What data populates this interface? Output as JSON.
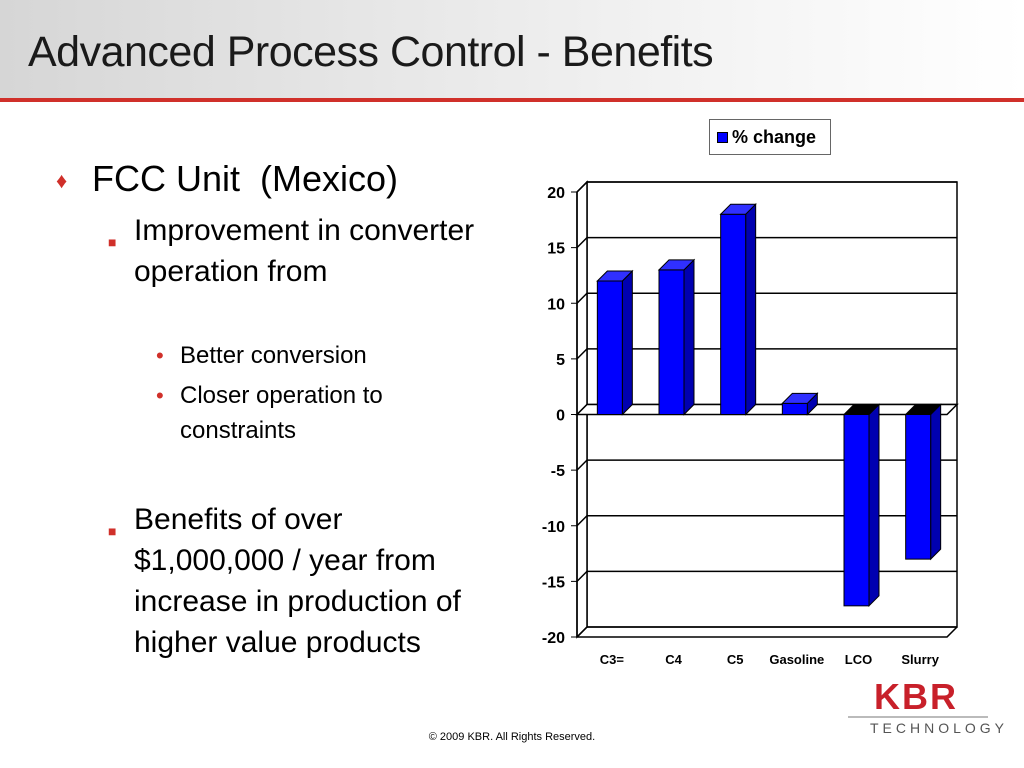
{
  "slide": {
    "title": "Advanced Process Control - Benefits",
    "footer": "© 2009 KBR. All Rights Reserved."
  },
  "bullets": {
    "level1_marker": "♦",
    "level2_marker": "■",
    "level3_marker": "•",
    "fcc": "FCC Unit  (Mexico)",
    "improvement": "Improvement in converter operation from",
    "better_conversion": "Better conversion",
    "closer_operation": "Closer operation to constraints",
    "benefits": "Benefits of over $1,000,000 / year from increase in production of higher value products"
  },
  "logo": {
    "name": "KBR",
    "tagline": "TECHNOLOGY",
    "color": "#c8202a"
  },
  "colors": {
    "accent": "#d0302a",
    "bar_fill": "#0000ff",
    "bar_side": "#0000b0",
    "bar_top": "#3030ff"
  },
  "chart_data": {
    "type": "bar",
    "categories": [
      "C3=",
      "C4",
      "C5",
      "Gasoline",
      "LCO",
      "Slurry"
    ],
    "series": [
      {
        "name": "% change",
        "values": [
          12,
          13,
          18,
          1,
          -17.2,
          -13
        ]
      }
    ],
    "ylim": [
      -20,
      20
    ],
    "yticks": [
      "20",
      "15",
      "10",
      "5",
      "0",
      "-5",
      "-10",
      "-15",
      "-20"
    ],
    "ytick_values": [
      20,
      15,
      10,
      5,
      0,
      -5,
      -10,
      -15,
      -20
    ],
    "grid": true,
    "legend_position": "top",
    "title": "",
    "xlabel": "",
    "ylabel": ""
  }
}
